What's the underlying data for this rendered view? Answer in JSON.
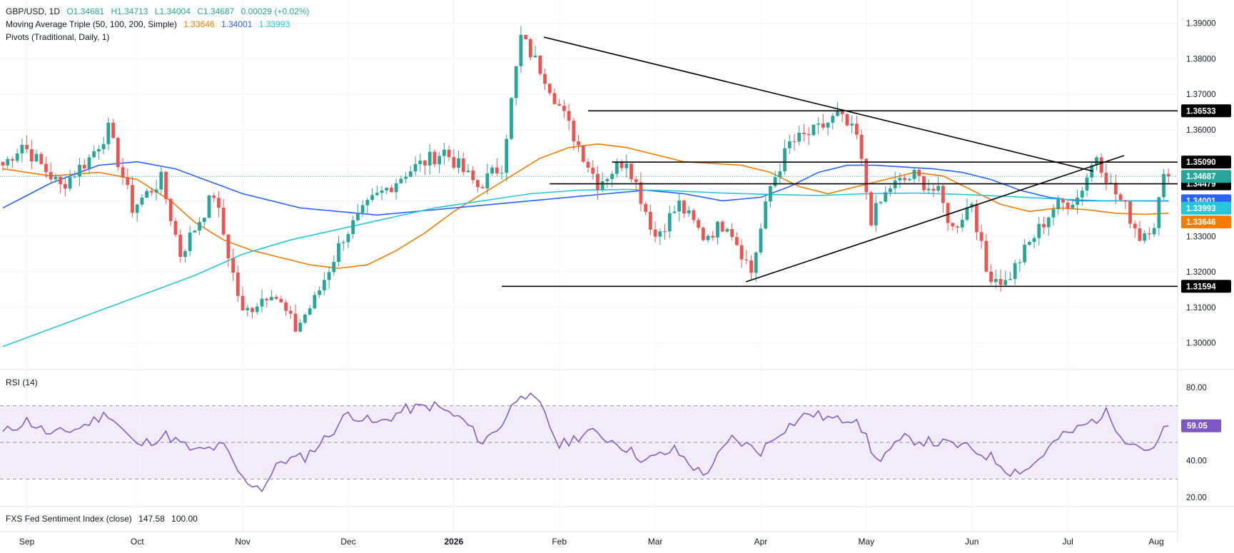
{
  "legend": {
    "symbol": "GBP/USD, 1D",
    "open": "O1.34681",
    "high": "H1.34713",
    "low": "L1.34004",
    "close": "C1.34687",
    "change": "0.00029 (+0.02%)",
    "ma_label": "Moving Average Triple (50, 100, 200, Simple)",
    "ma50": "1.33646",
    "ma100": "1.34001",
    "ma200": "1.33993",
    "pivots_label": "Pivots (Traditional, Daily, 1)",
    "rsi_label": "RSI (14)",
    "rsi_value": "59.05",
    "fxs_label": "FXS Fed Sentiment Index (close)",
    "fxs_value": "147.58",
    "fxs_base": "100.00"
  },
  "colors": {
    "up": "#26a69a",
    "down": "#ef5350",
    "ma50": "#f57c00",
    "ma100": "#2962ff",
    "ma200": "#26c6da",
    "rsi": "#7e57c2",
    "rsi_band": "#ede7f6",
    "trendline": "#000000"
  },
  "chart_data": [
    {
      "type": "candlestick",
      "title": "GBP/USD, 1D",
      "ylim": [
        1.2925,
        1.3925
      ],
      "y_ticks": [
        "1.39000",
        "1.38000",
        "1.37000",
        "1.36000",
        "1.35000",
        "1.34000",
        "1.33000",
        "1.32000",
        "1.31000",
        "1.30000"
      ],
      "x_ticks": [
        "Sep",
        "Oct",
        "Nov",
        "Dec",
        "2026",
        "Feb",
        "Mar",
        "Apr",
        "May",
        "Jun",
        "Jul",
        "Aug"
      ],
      "anchors": [
        [
          0,
          1.35
        ],
        [
          4,
          1.356
        ],
        [
          12,
          1.344
        ],
        [
          18,
          1.352
        ],
        [
          22,
          1.36
        ],
        [
          27,
          1.338
        ],
        [
          33,
          1.346
        ],
        [
          37,
          1.325
        ],
        [
          44,
          1.342
        ],
        [
          50,
          1.308
        ],
        [
          56,
          1.315
        ],
        [
          61,
          1.304
        ],
        [
          65,
          1.312
        ],
        [
          71,
          1.33
        ],
        [
          77,
          1.34
        ],
        [
          84,
          1.348
        ],
        [
          92,
          1.354
        ],
        [
          99,
          1.344
        ],
        [
          104,
          1.35
        ],
        [
          108,
          1.386
        ],
        [
          113,
          1.375
        ],
        [
          118,
          1.361
        ],
        [
          124,
          1.345
        ],
        [
          130,
          1.352
        ],
        [
          136,
          1.33
        ],
        [
          141,
          1.339
        ],
        [
          146,
          1.33
        ],
        [
          151,
          1.334
        ],
        [
          156,
          1.32
        ],
        [
          160,
          1.344
        ],
        [
          164,
          1.356
        ],
        [
          170,
          1.36
        ],
        [
          174,
          1.364
        ],
        [
          178,
          1.358
        ],
        [
          181,
          1.335
        ],
        [
          185,
          1.344
        ],
        [
          190,
          1.347
        ],
        [
          195,
          1.342
        ],
        [
          198,
          1.332
        ],
        [
          202,
          1.34
        ],
        [
          205,
          1.32
        ],
        [
          209,
          1.317
        ],
        [
          214,
          1.328
        ],
        [
          219,
          1.338
        ],
        [
          224,
          1.341
        ],
        [
          228,
          1.353
        ],
        [
          231,
          1.344
        ],
        [
          234,
          1.338
        ],
        [
          237,
          1.33
        ],
        [
          240,
          1.334
        ],
        [
          242,
          1.346
        ],
        [
          243,
          1.3469
        ]
      ],
      "series": [
        {
          "name": "50",
          "color": "ma50",
          "points": [
            [
              0,
              1.349
            ],
            [
              10,
              1.347
            ],
            [
              20,
              1.348
            ],
            [
              28,
              1.346
            ],
            [
              35,
              1.34
            ],
            [
              40,
              1.334
            ],
            [
              46,
              1.329
            ],
            [
              52,
              1.326
            ],
            [
              58,
              1.324
            ],
            [
              64,
              1.322
            ],
            [
              70,
              1.321
            ],
            [
              76,
              1.322
            ],
            [
              82,
              1.326
            ],
            [
              88,
              1.331
            ],
            [
              94,
              1.337
            ],
            [
              100,
              1.342
            ],
            [
              106,
              1.347
            ],
            [
              112,
              1.352
            ],
            [
              118,
              1.355
            ],
            [
              124,
              1.356
            ],
            [
              130,
              1.355
            ],
            [
              136,
              1.353
            ],
            [
              142,
              1.351
            ],
            [
              148,
              1.3505
            ],
            [
              154,
              1.35
            ],
            [
              160,
              1.348
            ],
            [
              166,
              1.344
            ],
            [
              172,
              1.342
            ],
            [
              178,
              1.344
            ],
            [
              184,
              1.346
            ],
            [
              190,
              1.348
            ],
            [
              196,
              1.347
            ],
            [
              202,
              1.343
            ],
            [
              208,
              1.339
            ],
            [
              214,
              1.337
            ],
            [
              220,
              1.338
            ],
            [
              226,
              1.3375
            ],
            [
              232,
              1.3365
            ],
            [
              238,
              1.3362
            ],
            [
              243,
              1.3365
            ]
          ]
        },
        {
          "name": "100",
          "color": "ma100",
          "points": [
            [
              0,
              1.338
            ],
            [
              10,
              1.345
            ],
            [
              20,
              1.35
            ],
            [
              28,
              1.351
            ],
            [
              36,
              1.349
            ],
            [
              44,
              1.345
            ],
            [
              50,
              1.342
            ],
            [
              56,
              1.34
            ],
            [
              62,
              1.338
            ],
            [
              70,
              1.337
            ],
            [
              78,
              1.336
            ],
            [
              86,
              1.337
            ],
            [
              94,
              1.338
            ],
            [
              102,
              1.339
            ],
            [
              110,
              1.34
            ],
            [
              118,
              1.341
            ],
            [
              126,
              1.342
            ],
            [
              134,
              1.343
            ],
            [
              142,
              1.342
            ],
            [
              150,
              1.34
            ],
            [
              158,
              1.341
            ],
            [
              164,
              1.344
            ],
            [
              170,
              1.348
            ],
            [
              176,
              1.35
            ],
            [
              182,
              1.35
            ],
            [
              188,
              1.3495
            ],
            [
              194,
              1.349
            ],
            [
              200,
              1.348
            ],
            [
              206,
              1.346
            ],
            [
              212,
              1.343
            ],
            [
              218,
              1.341
            ],
            [
              224,
              1.34
            ],
            [
              230,
              1.34
            ],
            [
              236,
              1.34
            ],
            [
              243,
              1.34
            ]
          ]
        },
        {
          "name": "200",
          "color": "ma200",
          "points": [
            [
              0,
              1.299
            ],
            [
              10,
              1.304
            ],
            [
              20,
              1.309
            ],
            [
              30,
              1.314
            ],
            [
              40,
              1.319
            ],
            [
              50,
              1.325
            ],
            [
              60,
              1.329
            ],
            [
              70,
              1.332
            ],
            [
              80,
              1.335
            ],
            [
              90,
              1.338
            ],
            [
              100,
              1.34
            ],
            [
              110,
              1.342
            ],
            [
              120,
              1.343
            ],
            [
              130,
              1.3432
            ],
            [
              140,
              1.3428
            ],
            [
              150,
              1.3422
            ],
            [
              160,
              1.3418
            ],
            [
              170,
              1.3415
            ],
            [
              180,
              1.342
            ],
            [
              190,
              1.3422
            ],
            [
              200,
              1.3418
            ],
            [
              210,
              1.3412
            ],
            [
              220,
              1.3405
            ],
            [
              230,
              1.34
            ],
            [
              243,
              1.3399
            ]
          ]
        }
      ],
      "horizontal_levels": [
        {
          "value": 1.36533,
          "label": "1.36533"
        },
        {
          "value": 1.3509,
          "label": "1.35090"
        },
        {
          "value": 1.34479,
          "label": "1.34479"
        },
        {
          "value": 1.31594,
          "label": "1.31594"
        }
      ],
      "price_tags": [
        {
          "value": 1.34687,
          "label": "1.34687",
          "color": "#26a69a"
        },
        {
          "value": 1.34001,
          "label": "1.34001",
          "color": "#2962ff"
        },
        {
          "value": 1.33993,
          "label": "1.33993",
          "color": "#26c6da"
        },
        {
          "value": 1.33646,
          "label": "1.33646",
          "color": "#f57c00"
        }
      ],
      "last_price": 1.34687
    },
    {
      "type": "line",
      "title": "RSI (14)",
      "ylim": [
        15,
        85
      ],
      "y_ticks": [
        "80.00",
        "40.00",
        "20.00"
      ],
      "bands": [
        30,
        50,
        70
      ],
      "last_value": 59.05,
      "anchors": [
        [
          0,
          55
        ],
        [
          5,
          62
        ],
        [
          10,
          54
        ],
        [
          16,
          58
        ],
        [
          22,
          66
        ],
        [
          28,
          48
        ],
        [
          34,
          54
        ],
        [
          40,
          45
        ],
        [
          46,
          48
        ],
        [
          50,
          30
        ],
        [
          54,
          25
        ],
        [
          58,
          40
        ],
        [
          63,
          42
        ],
        [
          68,
          54
        ],
        [
          72,
          66
        ],
        [
          78,
          60
        ],
        [
          84,
          68
        ],
        [
          90,
          70
        ],
        [
          96,
          62
        ],
        [
          100,
          50
        ],
        [
          104,
          60
        ],
        [
          108,
          78
        ],
        [
          112,
          70
        ],
        [
          116,
          48
        ],
        [
          122,
          56
        ],
        [
          128,
          50
        ],
        [
          134,
          40
        ],
        [
          140,
          46
        ],
        [
          146,
          32
        ],
        [
          152,
          52
        ],
        [
          158,
          45
        ],
        [
          162,
          56
        ],
        [
          168,
          66
        ],
        [
          174,
          62
        ],
        [
          178,
          64
        ],
        [
          182,
          40
        ],
        [
          188,
          52
        ],
        [
          194,
          50
        ],
        [
          200,
          48
        ],
        [
          206,
          42
        ],
        [
          210,
          34
        ],
        [
          214,
          36
        ],
        [
          220,
          52
        ],
        [
          226,
          60
        ],
        [
          230,
          66
        ],
        [
          234,
          52
        ],
        [
          237,
          48
        ],
        [
          240,
          45
        ],
        [
          242,
          58
        ],
        [
          243,
          59
        ]
      ]
    }
  ]
}
